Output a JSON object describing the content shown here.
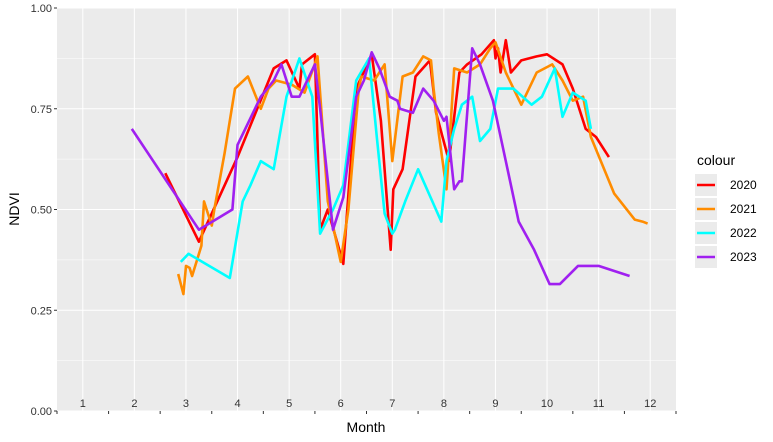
{
  "chart_data": {
    "type": "line",
    "xlabel": "Month",
    "ylabel": "NDVI",
    "xlim": [
      0.5,
      12.5
    ],
    "ylim": [
      0,
      1
    ],
    "x_tick_labels": [
      "1",
      "2",
      "3",
      "4",
      "5",
      "6",
      "7",
      "8",
      "9",
      "10",
      "11",
      "12"
    ],
    "y_ticks": [
      0,
      0.25,
      0.5,
      0.75,
      1
    ],
    "y_tick_labels": [
      "0.00",
      "0.25",
      "0.50",
      "0.75",
      "1.00"
    ],
    "grid": true,
    "background_color": "#ebebeb",
    "legend_title": "colour",
    "legend_position": "right",
    "series": [
      {
        "name": "2020",
        "color": "#ff0000",
        "x": [
          2.6,
          3.25,
          4.0,
          4.7,
          4.95,
          5.2,
          5.25,
          5.5,
          5.6,
          5.75,
          6.05,
          6.3,
          6.6,
          6.78,
          6.97,
          7.02,
          7.2,
          7.45,
          7.73,
          7.85,
          8.1,
          8.3,
          8.45,
          8.73,
          8.97,
          9.0,
          9.05,
          9.1,
          9.2,
          9.3,
          9.5,
          9.8,
          10.0,
          10.3,
          10.5,
          10.75,
          10.95,
          11.2
        ],
        "y": [
          0.59,
          0.42,
          0.63,
          0.85,
          0.87,
          0.8,
          0.86,
          0.885,
          0.45,
          0.5,
          0.365,
          0.8,
          0.885,
          0.72,
          0.4,
          0.55,
          0.6,
          0.83,
          0.87,
          0.74,
          0.62,
          0.84,
          0.86,
          0.885,
          0.92,
          0.875,
          0.9,
          0.84,
          0.92,
          0.84,
          0.87,
          0.88,
          0.885,
          0.86,
          0.8,
          0.7,
          0.68,
          0.63
        ]
      },
      {
        "name": "2021",
        "color": "#ff8c00",
        "x": [
          2.85,
          2.95,
          3.0,
          3.07,
          3.12,
          3.3,
          3.35,
          3.5,
          3.55,
          3.75,
          3.95,
          4.2,
          4.45,
          4.6,
          4.75,
          5.05,
          5.3,
          5.55,
          5.75,
          6.0,
          6.15,
          6.35,
          6.4,
          6.65,
          6.85,
          7.0,
          7.2,
          7.4,
          7.6,
          7.75,
          7.8,
          7.9,
          8.05,
          8.2,
          8.45,
          8.7,
          8.9,
          9.0,
          9.2,
          9.5,
          9.8,
          10.1,
          10.3,
          10.5,
          10.7,
          10.85,
          11.3,
          11.7,
          11.85,
          11.95
        ],
        "y": [
          0.34,
          0.29,
          0.36,
          0.355,
          0.335,
          0.41,
          0.52,
          0.46,
          0.5,
          0.64,
          0.8,
          0.83,
          0.75,
          0.8,
          0.82,
          0.81,
          0.79,
          0.88,
          0.52,
          0.37,
          0.5,
          0.8,
          0.83,
          0.82,
          0.86,
          0.62,
          0.83,
          0.84,
          0.88,
          0.87,
          0.8,
          0.69,
          0.55,
          0.85,
          0.84,
          0.86,
          0.9,
          0.915,
          0.84,
          0.76,
          0.84,
          0.86,
          0.82,
          0.77,
          0.78,
          0.68,
          0.54,
          0.475,
          0.47,
          0.465
        ]
      },
      {
        "name": "2022",
        "color": "#00ffff",
        "x": [
          2.9,
          3.05,
          3.85,
          4.1,
          4.25,
          4.45,
          4.7,
          4.95,
          5.2,
          5.45,
          5.6,
          5.85,
          6.05,
          6.3,
          6.55,
          6.7,
          6.85,
          7.0,
          7.05,
          7.25,
          7.5,
          7.95,
          8.05,
          8.2,
          8.35,
          8.55,
          8.7,
          8.9,
          9.05,
          9.15,
          9.35,
          9.7,
          9.9,
          10.15,
          10.3,
          10.5,
          10.75,
          10.85
        ],
        "y": [
          0.37,
          0.39,
          0.33,
          0.52,
          0.56,
          0.62,
          0.6,
          0.78,
          0.875,
          0.78,
          0.44,
          0.5,
          0.56,
          0.82,
          0.875,
          0.68,
          0.49,
          0.44,
          0.45,
          0.52,
          0.6,
          0.47,
          0.62,
          0.7,
          0.76,
          0.78,
          0.67,
          0.7,
          0.8,
          0.8,
          0.8,
          0.76,
          0.78,
          0.85,
          0.73,
          0.79,
          0.77,
          0.7
        ]
      },
      {
        "name": "2023",
        "color": "#a020f0",
        "x": [
          1.95,
          3.25,
          3.9,
          4.0,
          4.45,
          4.7,
          4.85,
          5.05,
          5.2,
          5.35,
          5.5,
          5.6,
          5.85,
          6.05,
          6.3,
          6.45,
          6.6,
          6.75,
          6.95,
          7.1,
          7.15,
          7.4,
          7.6,
          7.8,
          8.0,
          8.05,
          8.2,
          8.3,
          8.35,
          8.55,
          8.7,
          8.95,
          9.2,
          9.45,
          9.75,
          10.05,
          10.25,
          10.6,
          11.0,
          11.6
        ],
        "y": [
          0.7,
          0.45,
          0.5,
          0.66,
          0.78,
          0.82,
          0.86,
          0.78,
          0.78,
          0.82,
          0.86,
          0.75,
          0.45,
          0.53,
          0.78,
          0.82,
          0.89,
          0.85,
          0.78,
          0.77,
          0.75,
          0.74,
          0.8,
          0.77,
          0.72,
          0.73,
          0.55,
          0.57,
          0.57,
          0.9,
          0.86,
          0.77,
          0.62,
          0.47,
          0.4,
          0.315,
          0.315,
          0.36,
          0.36,
          0.335
        ]
      }
    ]
  }
}
